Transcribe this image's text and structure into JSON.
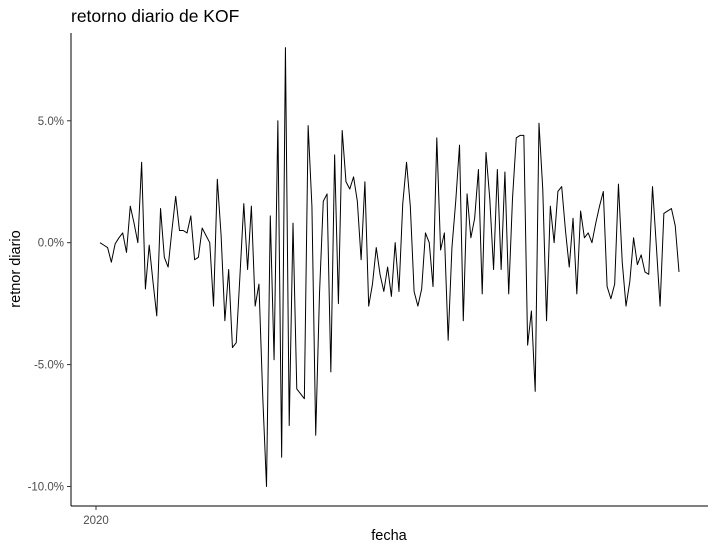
{
  "chart_data": {
    "type": "line",
    "title": "retorno diario de KOF",
    "xlabel": "fecha",
    "ylabel": "retnor diario",
    "ylim": [
      -10.8,
      8.6
    ],
    "yticks": [
      {
        "value": 5.0,
        "label": "5.0%"
      },
      {
        "value": 0.0,
        "label": "0.0%"
      },
      {
        "value": -5.0,
        "label": "-5.0%"
      },
      {
        "value": -10.0,
        "label": "-10.0%"
      }
    ],
    "xticks": [
      {
        "value": 0,
        "label": "2020"
      }
    ],
    "grid": false,
    "legend": "none",
    "series": [
      {
        "values": [
          0.0,
          -0.1,
          -0.2,
          -0.8,
          -0.05,
          0.2,
          0.4,
          -0.4,
          1.5,
          0.8,
          0.0,
          3.3,
          -1.9,
          -0.1,
          -1.6,
          -3.0,
          1.4,
          -0.6,
          -1.0,
          0.5,
          1.9,
          0.5,
          0.5,
          0.4,
          1.1,
          -0.7,
          -0.6,
          0.6,
          0.3,
          0.0,
          -2.6,
          2.6,
          0.3,
          -3.2,
          -1.1,
          -4.3,
          -4.1,
          -1.3,
          1.6,
          -1.1,
          1.5,
          -2.6,
          -1.7,
          -6.3,
          -10.0,
          1.1,
          -4.8,
          5.0,
          -8.8,
          8.0,
          -7.5,
          0.8,
          -6.0,
          -6.2,
          -6.4,
          4.8,
          1.5,
          -7.9,
          -2.1,
          1.7,
          2.0,
          -5.3,
          3.6,
          -2.5,
          4.6,
          2.5,
          2.2,
          2.7,
          1.7,
          -0.7,
          2.5,
          -2.6,
          -1.7,
          -0.2,
          -1.3,
          -2.0,
          -1.0,
          -2.2,
          0.0,
          -2.0,
          1.6,
          3.3,
          1.5,
          -2.0,
          -2.6,
          -1.9,
          0.4,
          0.0,
          -1.8,
          4.3,
          -0.3,
          0.4,
          -4.0,
          -0.2,
          1.7,
          4.0,
          -3.2,
          2.0,
          0.2,
          1.0,
          3.0,
          -2.1,
          3.7,
          1.8,
          -1.1,
          3.0,
          -1.1,
          2.9,
          -2.1,
          1.8,
          4.3,
          4.4,
          4.4,
          -4.2,
          -2.8,
          -6.1,
          4.9,
          2.2,
          -3.2,
          1.5,
          0.0,
          2.1,
          2.3,
          0.5,
          -1.0,
          1.0,
          -2.1,
          1.3,
          0.2,
          0.4,
          0.0,
          0.8,
          1.5,
          2.1,
          -1.8,
          -2.3,
          -1.7,
          2.4,
          -0.8,
          -2.6,
          -1.6,
          0.2,
          -0.9,
          -0.5,
          -1.2,
          -1.3,
          2.3,
          -0.1,
          -2.6,
          1.2,
          1.3,
          1.4,
          0.7,
          -1.2
        ]
      }
    ]
  }
}
